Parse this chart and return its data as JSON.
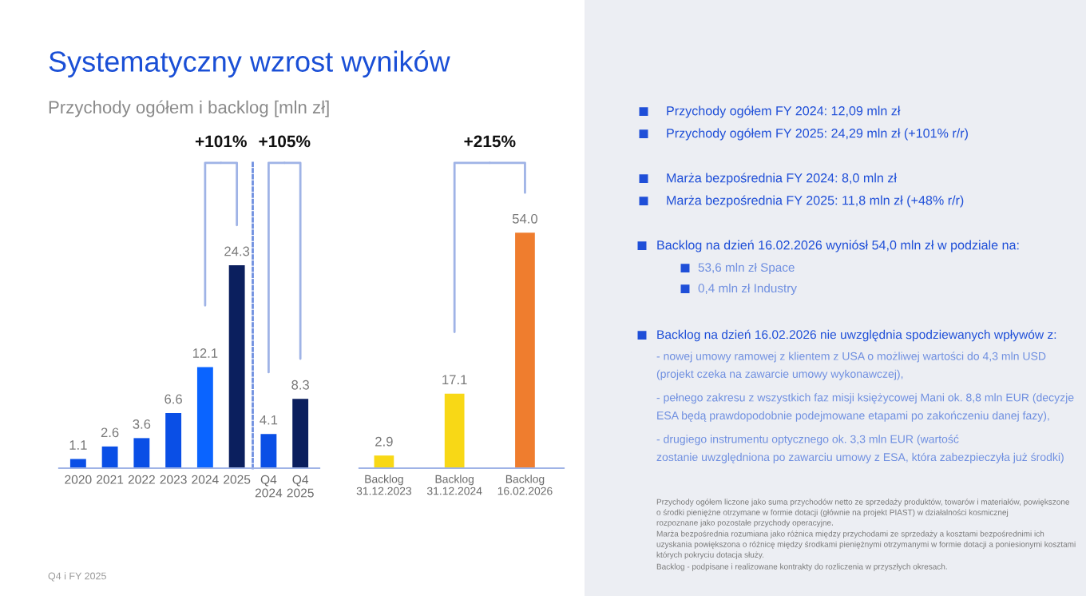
{
  "chart_data": [
    {
      "type": "bar",
      "title": "Systematyczny wzrost wyników",
      "subtitle": "Przychody ogółem i backlog [mln zł]",
      "categories": [
        "2020",
        "2021",
        "2022",
        "2023",
        "2024",
        "2025",
        "Q4\n2024",
        "Q4\n2025"
      ],
      "values": [
        1.1,
        2.6,
        3.6,
        6.6,
        12.1,
        24.3,
        4.1,
        8.3
      ],
      "colors": [
        "#0a4fe6",
        "#0a4fe6",
        "#0a4fe6",
        "#0a4fe6",
        "#0a64ff",
        "#0b1f5e",
        "#0a4fe6",
        "#0b1f5e"
      ],
      "value_labels": [
        "1.1",
        "2.6",
        "3.6",
        "6.6",
        "12.1",
        "24.3",
        "4.1",
        "8.3"
      ],
      "annotations": [
        "+101%",
        "+105%",
        "Q4 i FY 2025"
      ]
    },
    {
      "type": "bar",
      "categories": [
        "Backlog\n31.12.2023",
        "Backlog\n31.12.2024",
        "Backlog\n16.02.2026"
      ],
      "values": [
        2.9,
        17.1,
        54.0
      ],
      "colors": [
        "#f8d816",
        "#f8d816",
        "#ef7d2e"
      ],
      "value_labels": [
        "2.9",
        "17.1",
        "54.0"
      ],
      "annotations": [
        "+215%"
      ]
    },
    {
      "type": "other",
      "annotations": [
        "Przychody ogółem FY 2024: 12,09 mln zł",
        "Przychody ogółem FY 2025: 24,29 mln zł (+101% r/r)",
        "Marża bezpośrednia FY 2024: 8,0 mln zł",
        "Marża bezpośrednia FY 2025: 11,8 mln zł (+48% r/r)",
        "Backlog na dzień 16.02.2026 wyniósł 54,0 mln zł w podziale na:",
        "53,6 mln zł Space",
        "0,4 mln zł Industry",
        "Backlog na dzień 16.02.2026 nie uwzględnia spodziewanych wpływów z:",
        "- nowej umowy ramowej z klientem z USA o możliwej wartości do 4,3 mln USD\n(projekt czeka na zawarcie umowy wykonawczej),",
        "- pełnego zakresu z wszystkich faz misji księżycowej Mani ok. 8,8 mln EUR (decyzje\nESA będą prawdopodobnie podejmowane etapami po zakończeniu danej fazy),",
        "- drugiego instrumentu optycznego ok. 3,3 mln EUR (wartość\nzostanie uwzględniona po zawarciu umowy z ESA, która zabezpieczyła już środki)",
        "Przychody ogółem liczone jako suma przychodów netto ze sprzedaży produktów, towarów i materiałów, powiększone\no środki pieniężne otrzymane w formie dotacji (głównie na projekt PIAST) w działalności kosmicznej\nrozpoznane jako pozostałe przychody operacyjne.",
        "Marża bezpośrednia rozumiana jako różnica między przychodami ze sprzedaży a kosztami bezpośrednimi ich\nuzyskania powiększona o różnicę między środkami pieniężnymi otrzymanymi w formie dotacji a poniesionymi kosztami\nktórych pokryciu dotacja służy.",
        "Backlog - podpisane i realizowane kontrakty do rozliczenia w przyszłych okresach."
      ]
    }
  ]
}
